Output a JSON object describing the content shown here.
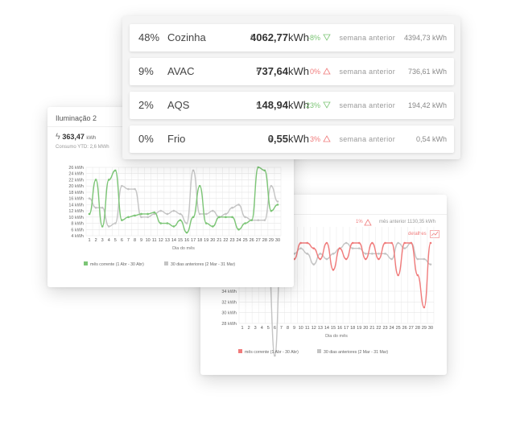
{
  "summary": {
    "rows": [
      {
        "pct": "48%",
        "name": "Cozinha",
        "value": "4062,77",
        "unit": "kWh",
        "change": "-8%",
        "trend": "down",
        "label": "semana anterior",
        "previous": "4394,73 kWh"
      },
      {
        "pct": "9%",
        "name": "AVAC",
        "value": "737,64",
        "unit": "kWh",
        "change": "0%",
        "trend": "up",
        "label": "semana anterior",
        "previous": "736,61 kWh"
      },
      {
        "pct": "2%",
        "name": "AQS",
        "value": "148,94",
        "unit": "kWh",
        "change": "-23%",
        "trend": "down",
        "label": "semana anterior",
        "previous": "194,42 kWh"
      },
      {
        "pct": "0%",
        "name": "Frio",
        "value": "0,55",
        "unit": "kWh",
        "change": "3%",
        "trend": "up",
        "label": "semana anterior",
        "previous": "0,54 kWh"
      }
    ]
  },
  "left_card": {
    "title": "Iluminação 2",
    "value": "363,47",
    "unit": "kWh",
    "ytd": "Consumo YTD:   2,6 MWh"
  },
  "right_card": {
    "change": "1%",
    "label": "mês anterior 1130,35 kWh",
    "detail": "detalhes"
  },
  "chart_data": [
    {
      "type": "line",
      "xlabel": "Dia do mês",
      "ylabel": "",
      "ylim": [
        4,
        26
      ],
      "yticks": [
        "4 kWh",
        "6 kWh",
        "8 kWh",
        "10 kWh",
        "12 kWh",
        "14 kWh",
        "16 kWh",
        "18 kWh",
        "20 kWh",
        "22 kWh",
        "24 kWh",
        "26 kWh"
      ],
      "x": [
        1,
        2,
        3,
        4,
        5,
        6,
        7,
        8,
        9,
        10,
        11,
        12,
        13,
        14,
        15,
        16,
        17,
        18,
        19,
        20,
        21,
        22,
        23,
        24,
        25,
        26,
        27,
        28,
        29,
        30
      ],
      "grid": true,
      "legend_position": "bottom",
      "series": [
        {
          "name": "mês corrente (1 Abr - 30 Abr)",
          "color": "#7cc576",
          "values": [
            11,
            22,
            7,
            22,
            25,
            9,
            10,
            10.5,
            11,
            11,
            11.5,
            8,
            8,
            7,
            9,
            5,
            10,
            20,
            8,
            7,
            10,
            10,
            10,
            6,
            8,
            9,
            26,
            25,
            12,
            14
          ]
        },
        {
          "name": "30 dias anteriores (2 Mar - 31 Mar)",
          "color": "#c4c4c4",
          "values": [
            16,
            13,
            13,
            7,
            8,
            20,
            19,
            19,
            10,
            10,
            11,
            12,
            11,
            12,
            11,
            8,
            25,
            11,
            11,
            12,
            10,
            11,
            13,
            14,
            10,
            9,
            9,
            9,
            20,
            15
          ]
        }
      ]
    },
    {
      "type": "line",
      "xlabel": "Dia do mês",
      "ylabel": "",
      "ylim": [
        28,
        46
      ],
      "yticks": [
        "28 kWh",
        "30 kWh",
        "32 kWh",
        "34 kWh"
      ],
      "x": [
        1,
        2,
        3,
        4,
        5,
        6,
        7,
        8,
        9,
        10,
        11,
        12,
        13,
        14,
        15,
        16,
        17,
        18,
        19,
        20,
        21,
        22,
        23,
        24,
        25,
        26,
        27,
        28,
        29,
        30
      ],
      "grid": true,
      "legend_position": "bottom",
      "series": [
        {
          "name": "mês corrente (1 Abr - 30 Abr)",
          "color": "#f07b7b",
          "values": [
            42,
            40,
            40,
            39,
            40,
            40,
            40,
            40,
            40,
            43,
            43,
            42,
            40,
            43,
            38,
            42,
            40,
            43,
            43,
            40,
            43,
            40,
            43,
            43,
            37,
            43,
            43,
            37,
            31,
            43
          ]
        },
        {
          "name": "30 dias anteriores (2 Mar - 31 Mar)",
          "color": "#c4c4c4",
          "values": [
            40,
            41,
            43,
            44,
            40,
            22,
            43,
            40,
            41,
            42,
            41,
            39,
            41,
            40,
            41,
            42,
            43,
            42,
            42,
            41,
            41,
            41,
            41,
            40,
            43,
            42,
            43,
            40,
            40,
            39
          ]
        }
      ]
    }
  ]
}
